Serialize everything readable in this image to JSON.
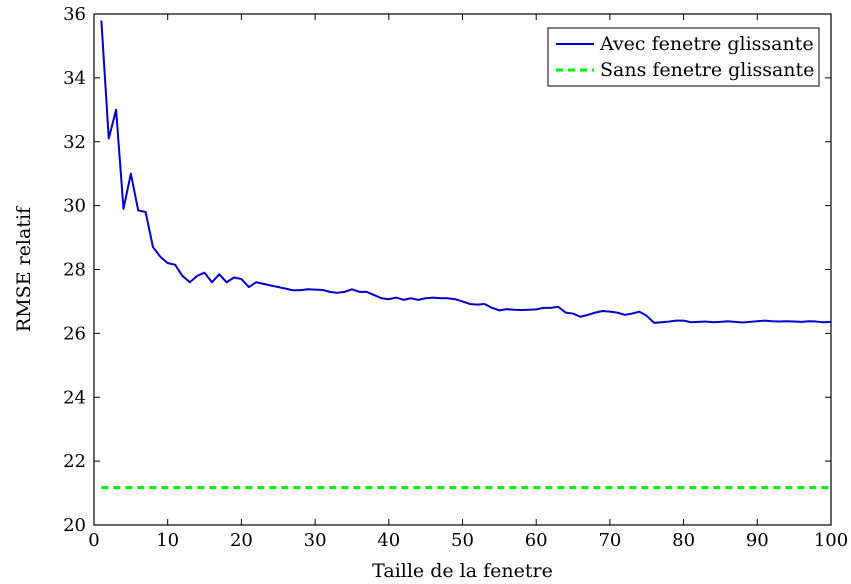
{
  "chart_data": {
    "type": "line",
    "title": "",
    "xlabel": "Taille de la fenetre",
    "ylabel": "RMSE relatif",
    "xlim": [
      0,
      100
    ],
    "ylim": [
      20,
      36
    ],
    "xticks": [
      0,
      10,
      20,
      30,
      40,
      50,
      60,
      70,
      80,
      90,
      100
    ],
    "yticks": [
      20,
      22,
      24,
      26,
      28,
      30,
      32,
      34,
      36
    ],
    "xtick_labels": [
      "0",
      "10",
      "20",
      "30",
      "40",
      "50",
      "60",
      "70",
      "80",
      "90",
      "100"
    ],
    "ytick_labels": [
      "20",
      "22",
      "24",
      "26",
      "28",
      "30",
      "32",
      "34",
      "36"
    ],
    "grid": false,
    "legend_position": "top-right",
    "series": [
      {
        "name": "Avec fenetre glissante",
        "color": "#0000cc",
        "style": "solid",
        "x": [
          1,
          2,
          3,
          4,
          5,
          6,
          7,
          8,
          9,
          10,
          11,
          12,
          13,
          14,
          15,
          16,
          17,
          18,
          19,
          20,
          21,
          22,
          23,
          24,
          25,
          26,
          27,
          28,
          29,
          30,
          31,
          32,
          33,
          34,
          35,
          36,
          37,
          38,
          39,
          40,
          41,
          42,
          43,
          44,
          45,
          46,
          47,
          48,
          49,
          50,
          51,
          52,
          53,
          54,
          55,
          56,
          57,
          58,
          59,
          60,
          61,
          62,
          63,
          64,
          65,
          66,
          67,
          68,
          69,
          70,
          71,
          72,
          73,
          74,
          75,
          76,
          77,
          78,
          79,
          80,
          81,
          82,
          83,
          84,
          85,
          86,
          87,
          88,
          89,
          90,
          91,
          92,
          93,
          94,
          95,
          96,
          97,
          98,
          99,
          100
        ],
        "values": [
          35.8,
          32.1,
          33.0,
          29.9,
          31.0,
          29.85,
          29.8,
          28.7,
          28.4,
          28.2,
          28.15,
          27.8,
          27.6,
          27.8,
          27.9,
          27.6,
          27.85,
          27.6,
          27.75,
          27.7,
          27.45,
          27.6,
          27.55,
          27.5,
          27.45,
          27.4,
          27.35,
          27.35,
          27.38,
          27.37,
          27.36,
          27.3,
          27.27,
          27.3,
          27.38,
          27.3,
          27.3,
          27.2,
          27.1,
          27.07,
          27.12,
          27.05,
          27.1,
          27.05,
          27.1,
          27.12,
          27.1,
          27.1,
          27.07,
          27.0,
          26.92,
          26.9,
          26.92,
          26.8,
          26.72,
          26.76,
          26.74,
          26.73,
          26.74,
          26.75,
          26.8,
          26.8,
          26.83,
          26.65,
          26.62,
          26.52,
          26.58,
          26.65,
          26.7,
          26.68,
          26.65,
          26.58,
          26.62,
          26.68,
          26.55,
          26.33,
          26.35,
          26.37,
          26.4,
          26.4,
          26.35,
          26.36,
          26.37,
          26.35,
          26.36,
          26.38,
          26.36,
          26.34,
          26.36,
          26.38,
          26.4,
          26.38,
          26.37,
          26.38,
          26.37,
          26.36,
          26.38,
          26.37,
          26.35,
          26.36
        ]
      },
      {
        "name": "Sans fenetre glissante",
        "color": "#00ee00",
        "style": "dashed",
        "x": [
          1,
          100
        ],
        "values": [
          21.17,
          21.17
        ]
      }
    ]
  }
}
